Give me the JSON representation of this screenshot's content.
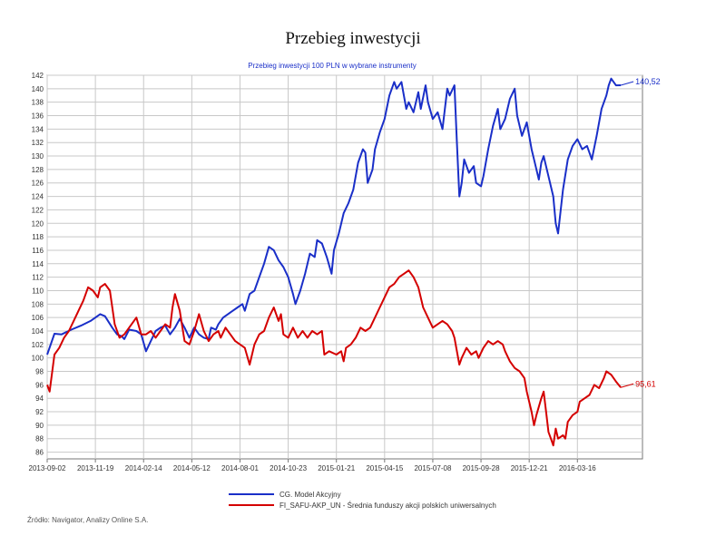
{
  "page": {
    "title": "Przebieg inwestycji",
    "source_note": "Źródło: Navigator, Analizy Online S.A."
  },
  "chart_data": {
    "type": "line",
    "title": "Przebieg inwestycji 100 PLN w wybrane instrumenty",
    "xlabel": "",
    "ylabel": "",
    "ylim": [
      85,
      142
    ],
    "y_ticks": [
      86,
      88,
      90,
      92,
      94,
      96,
      98,
      100,
      102,
      104,
      106,
      108,
      110,
      112,
      114,
      116,
      118,
      120,
      122,
      124,
      126,
      128,
      130,
      132,
      134,
      136,
      138,
      140,
      142
    ],
    "x_tick_labels": [
      "2013-09-02",
      "2013-11-19",
      "2014-02-14",
      "2014-05-12",
      "2014-08-01",
      "2014-10-23",
      "2015-01-21",
      "2015-04-15",
      "2015-07-08",
      "2015-09-28",
      "2015-12-21",
      "2016-03-16"
    ],
    "x_range_index": [
      0,
      12.35
    ],
    "grid": true,
    "legend_position": "bottom",
    "series": [
      {
        "name": "CG. Model Akcyjny",
        "color": "#1a2fc8",
        "end_label": "140,52",
        "points": [
          [
            0,
            100.5
          ],
          [
            0.15,
            103.6
          ],
          [
            0.3,
            103.5
          ],
          [
            0.5,
            104.2
          ],
          [
            0.7,
            104.8
          ],
          [
            0.9,
            105.5
          ],
          [
            1.0,
            106.0
          ],
          [
            1.1,
            106.5
          ],
          [
            1.2,
            106.2
          ],
          [
            1.35,
            104.5
          ],
          [
            1.45,
            103.5
          ],
          [
            1.55,
            103.2
          ],
          [
            1.6,
            102.8
          ],
          [
            1.7,
            104.2
          ],
          [
            1.85,
            104.0
          ],
          [
            1.95,
            103.5
          ],
          [
            2.05,
            101.0
          ],
          [
            2.15,
            102.5
          ],
          [
            2.25,
            104.0
          ],
          [
            2.35,
            104.5
          ],
          [
            2.45,
            104.8
          ],
          [
            2.55,
            103.5
          ],
          [
            2.65,
            104.5
          ],
          [
            2.75,
            105.8
          ],
          [
            2.85,
            104.5
          ],
          [
            2.95,
            103.0
          ],
          [
            3.05,
            104.5
          ],
          [
            3.15,
            103.5
          ],
          [
            3.25,
            103.0
          ],
          [
            3.35,
            102.8
          ],
          [
            3.4,
            104.5
          ],
          [
            3.5,
            104.2
          ],
          [
            3.55,
            105.0
          ],
          [
            3.65,
            106.0
          ],
          [
            3.75,
            106.5
          ],
          [
            3.85,
            107.0
          ],
          [
            3.95,
            107.5
          ],
          [
            4.05,
            108.0
          ],
          [
            4.1,
            107.0
          ],
          [
            4.2,
            109.5
          ],
          [
            4.3,
            110.0
          ],
          [
            4.4,
            112.0
          ],
          [
            4.5,
            114.0
          ],
          [
            4.6,
            116.5
          ],
          [
            4.7,
            116.0
          ],
          [
            4.8,
            114.5
          ],
          [
            4.9,
            113.5
          ],
          [
            5.0,
            112.0
          ],
          [
            5.1,
            109.5
          ],
          [
            5.15,
            108.0
          ],
          [
            5.25,
            110.0
          ],
          [
            5.35,
            112.5
          ],
          [
            5.45,
            115.5
          ],
          [
            5.55,
            115.0
          ],
          [
            5.6,
            117.5
          ],
          [
            5.7,
            117.0
          ],
          [
            5.8,
            115.0
          ],
          [
            5.9,
            112.5
          ],
          [
            5.95,
            116.0
          ],
          [
            6.05,
            118.5
          ],
          [
            6.15,
            121.5
          ],
          [
            6.25,
            123.0
          ],
          [
            6.35,
            125.0
          ],
          [
            6.45,
            129.0
          ],
          [
            6.55,
            131.0
          ],
          [
            6.6,
            130.5
          ],
          [
            6.65,
            126.0
          ],
          [
            6.75,
            128.0
          ],
          [
            6.8,
            131.0
          ],
          [
            6.9,
            133.5
          ],
          [
            7.0,
            135.5
          ],
          [
            7.1,
            139.0
          ],
          [
            7.2,
            141.0
          ],
          [
            7.25,
            140.0
          ],
          [
            7.35,
            141.0
          ],
          [
            7.45,
            137.0
          ],
          [
            7.5,
            138.0
          ],
          [
            7.6,
            136.5
          ],
          [
            7.7,
            139.5
          ],
          [
            7.75,
            137.0
          ],
          [
            7.85,
            140.5
          ],
          [
            7.9,
            138.0
          ],
          [
            8.0,
            135.5
          ],
          [
            8.1,
            136.5
          ],
          [
            8.2,
            134.0
          ],
          [
            8.3,
            140.0
          ],
          [
            8.35,
            139.0
          ],
          [
            8.45,
            140.5
          ],
          [
            8.5,
            132.0
          ],
          [
            8.55,
            124.0
          ],
          [
            8.6,
            126.0
          ],
          [
            8.65,
            129.5
          ],
          [
            8.75,
            127.5
          ],
          [
            8.85,
            128.5
          ],
          [
            8.9,
            126.0
          ],
          [
            9.0,
            125.5
          ],
          [
            9.05,
            127.0
          ],
          [
            9.15,
            131.0
          ],
          [
            9.25,
            134.5
          ],
          [
            9.35,
            137.0
          ],
          [
            9.4,
            134.0
          ],
          [
            9.5,
            135.5
          ],
          [
            9.6,
            138.5
          ],
          [
            9.7,
            140.0
          ],
          [
            9.75,
            136.0
          ],
          [
            9.85,
            133.0
          ],
          [
            9.95,
            135.0
          ],
          [
            10.05,
            131.0
          ],
          [
            10.1,
            129.5
          ],
          [
            10.2,
            126.5
          ],
          [
            10.25,
            129.0
          ],
          [
            10.3,
            130.0
          ],
          [
            10.4,
            127.0
          ],
          [
            10.5,
            124.0
          ],
          [
            10.55,
            120.0
          ],
          [
            10.6,
            118.5
          ],
          [
            10.7,
            125.0
          ],
          [
            10.8,
            129.5
          ],
          [
            10.9,
            131.5
          ],
          [
            11.0,
            132.5
          ],
          [
            11.1,
            131.0
          ],
          [
            11.2,
            131.5
          ],
          [
            11.3,
            129.5
          ],
          [
            11.4,
            133.0
          ],
          [
            11.5,
            137.0
          ],
          [
            11.6,
            139.0
          ],
          [
            11.65,
            140.5
          ],
          [
            11.7,
            141.5
          ],
          [
            11.8,
            140.5
          ],
          [
            11.9,
            140.52
          ]
        ]
      },
      {
        "name": "FI_SAFU-AKP_UN - Średnia funduszy akcji polskich uniwersalnych",
        "color": "#d40000",
        "end_label": "95,61",
        "points": [
          [
            0,
            96.0
          ],
          [
            0.05,
            95.0
          ],
          [
            0.15,
            100.5
          ],
          [
            0.25,
            101.5
          ],
          [
            0.35,
            103.0
          ],
          [
            0.45,
            104.0
          ],
          [
            0.55,
            105.5
          ],
          [
            0.65,
            107.0
          ],
          [
            0.75,
            108.5
          ],
          [
            0.85,
            110.5
          ],
          [
            0.95,
            110.0
          ],
          [
            1.05,
            109.0
          ],
          [
            1.1,
            110.5
          ],
          [
            1.2,
            111.0
          ],
          [
            1.3,
            110.0
          ],
          [
            1.4,
            105.0
          ],
          [
            1.5,
            103.0
          ],
          [
            1.6,
            103.5
          ],
          [
            1.7,
            104.5
          ],
          [
            1.85,
            106.0
          ],
          [
            1.95,
            103.5
          ],
          [
            2.05,
            103.5
          ],
          [
            2.15,
            104.0
          ],
          [
            2.25,
            103.0
          ],
          [
            2.35,
            104.0
          ],
          [
            2.45,
            105.0
          ],
          [
            2.55,
            104.5
          ],
          [
            2.6,
            107.5
          ],
          [
            2.65,
            109.5
          ],
          [
            2.75,
            107.0
          ],
          [
            2.85,
            102.5
          ],
          [
            2.95,
            102.0
          ],
          [
            3.05,
            104.0
          ],
          [
            3.15,
            106.5
          ],
          [
            3.25,
            104.0
          ],
          [
            3.35,
            102.5
          ],
          [
            3.45,
            103.5
          ],
          [
            3.55,
            104.0
          ],
          [
            3.6,
            103.0
          ],
          [
            3.7,
            104.5
          ],
          [
            3.8,
            103.5
          ],
          [
            3.9,
            102.5
          ],
          [
            4.0,
            102.0
          ],
          [
            4.1,
            101.5
          ],
          [
            4.2,
            99.0
          ],
          [
            4.3,
            102.0
          ],
          [
            4.4,
            103.5
          ],
          [
            4.5,
            104.0
          ],
          [
            4.6,
            106.0
          ],
          [
            4.7,
            107.5
          ],
          [
            4.8,
            105.5
          ],
          [
            4.85,
            106.5
          ],
          [
            4.9,
            103.5
          ],
          [
            5.0,
            103.0
          ],
          [
            5.1,
            104.5
          ],
          [
            5.2,
            103.0
          ],
          [
            5.3,
            104.0
          ],
          [
            5.4,
            103.0
          ],
          [
            5.5,
            104.0
          ],
          [
            5.6,
            103.5
          ],
          [
            5.7,
            104.0
          ],
          [
            5.75,
            100.5
          ],
          [
            5.85,
            101.0
          ],
          [
            6.0,
            100.5
          ],
          [
            6.1,
            101.0
          ],
          [
            6.15,
            99.5
          ],
          [
            6.2,
            101.5
          ],
          [
            6.3,
            102.0
          ],
          [
            6.4,
            103.0
          ],
          [
            6.5,
            104.5
          ],
          [
            6.6,
            104.0
          ],
          [
            6.7,
            104.5
          ],
          [
            6.8,
            106.0
          ],
          [
            6.9,
            107.5
          ],
          [
            7.0,
            109.0
          ],
          [
            7.1,
            110.5
          ],
          [
            7.2,
            111.0
          ],
          [
            7.3,
            112.0
          ],
          [
            7.4,
            112.5
          ],
          [
            7.5,
            113.0
          ],
          [
            7.6,
            112.0
          ],
          [
            7.7,
            110.5
          ],
          [
            7.8,
            107.5
          ],
          [
            7.9,
            106.0
          ],
          [
            8.0,
            104.5
          ],
          [
            8.1,
            105.0
          ],
          [
            8.2,
            105.5
          ],
          [
            8.3,
            105.0
          ],
          [
            8.4,
            104.0
          ],
          [
            8.45,
            103.0
          ],
          [
            8.5,
            101.0
          ],
          [
            8.55,
            99.0
          ],
          [
            8.6,
            100.0
          ],
          [
            8.7,
            101.5
          ],
          [
            8.8,
            100.5
          ],
          [
            8.9,
            101.0
          ],
          [
            8.95,
            100.0
          ],
          [
            9.05,
            101.5
          ],
          [
            9.15,
            102.5
          ],
          [
            9.25,
            102.0
          ],
          [
            9.35,
            102.5
          ],
          [
            9.45,
            102.0
          ],
          [
            9.5,
            101.0
          ],
          [
            9.6,
            99.5
          ],
          [
            9.7,
            98.5
          ],
          [
            9.8,
            98.0
          ],
          [
            9.9,
            97.0
          ],
          [
            9.95,
            95.0
          ],
          [
            10.05,
            92.0
          ],
          [
            10.1,
            90.0
          ],
          [
            10.15,
            91.5
          ],
          [
            10.25,
            94.0
          ],
          [
            10.3,
            95.0
          ],
          [
            10.35,
            92.0
          ],
          [
            10.4,
            89.0
          ],
          [
            10.45,
            88.0
          ],
          [
            10.5,
            87.0
          ],
          [
            10.55,
            89.5
          ],
          [
            10.6,
            88.0
          ],
          [
            10.7,
            88.5
          ],
          [
            10.75,
            88.0
          ],
          [
            10.8,
            90.5
          ],
          [
            10.9,
            91.5
          ],
          [
            11.0,
            92.0
          ],
          [
            11.05,
            93.5
          ],
          [
            11.15,
            94.0
          ],
          [
            11.25,
            94.5
          ],
          [
            11.35,
            96.0
          ],
          [
            11.45,
            95.5
          ],
          [
            11.55,
            97.0
          ],
          [
            11.6,
            98.0
          ],
          [
            11.7,
            97.5
          ],
          [
            11.8,
            96.5
          ],
          [
            11.9,
            95.61
          ]
        ]
      }
    ]
  }
}
